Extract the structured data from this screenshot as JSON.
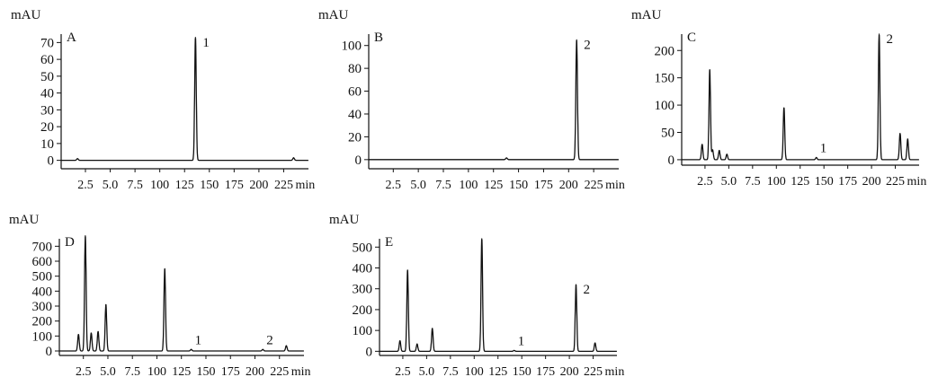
{
  "chart_data": [
    {
      "type": "line",
      "panel_label": "A",
      "ylabel": "mAU",
      "xlabel_unit": "min",
      "ylim": [
        -5,
        75
      ],
      "xlim": [
        0.5,
        250
      ],
      "y_ticks": [
        "0",
        "10",
        "20",
        "30",
        "40",
        "50",
        "60",
        "70"
      ],
      "x_ticks": [
        "2.5",
        "5.0",
        "7.5",
        "100",
        "125",
        "150",
        "175",
        "200",
        "225"
      ],
      "x_tick_values": [
        25,
        50,
        75,
        100,
        125,
        150,
        175,
        200,
        225
      ],
      "baseline": 0,
      "peaks": [
        {
          "x": 17,
          "y": 1.0,
          "label": ""
        },
        {
          "x": 136,
          "y": 73,
          "label": "1"
        },
        {
          "x": 235,
          "y": 1.5,
          "label": ""
        }
      ],
      "peak_labels": [
        "1"
      ]
    },
    {
      "type": "line",
      "panel_label": "B",
      "ylabel": "mAU",
      "xlabel_unit": "min",
      "ylim": [
        -8,
        110
      ],
      "xlim": [
        0.5,
        250
      ],
      "y_ticks": [
        "0",
        "20",
        "40",
        "60",
        "80",
        "100"
      ],
      "x_ticks": [
        "2.5",
        "5.0",
        "7.5",
        "100",
        "125",
        "150",
        "175",
        "200",
        "225"
      ],
      "x_tick_values": [
        25,
        50,
        75,
        100,
        125,
        150,
        175,
        200,
        225
      ],
      "baseline": 0,
      "peaks": [
        {
          "x": 138,
          "y": 1.5,
          "label": ""
        },
        {
          "x": 208,
          "y": 105,
          "label": "2"
        }
      ],
      "peak_labels": [
        "2"
      ]
    },
    {
      "type": "line",
      "panel_label": "C",
      "ylabel": "mAU",
      "xlabel_unit": "min",
      "ylim": [
        -10,
        230
      ],
      "xlim": [
        0.5,
        250
      ],
      "y_ticks": [
        "0",
        "50",
        "100",
        "150",
        "200"
      ],
      "x_ticks": [
        "2.5",
        "5.0",
        "7.5",
        "100",
        "125",
        "150",
        "175",
        "200",
        "225"
      ],
      "x_tick_values": [
        25,
        50,
        75,
        100,
        125,
        150,
        175,
        200,
        225
      ],
      "baseline": 0,
      "peaks": [
        {
          "x": 22,
          "y": 28,
          "label": ""
        },
        {
          "x": 30,
          "y": 165,
          "label": ""
        },
        {
          "x": 33,
          "y": 18,
          "label": ""
        },
        {
          "x": 40,
          "y": 17,
          "label": ""
        },
        {
          "x": 48,
          "y": 10,
          "label": ""
        },
        {
          "x": 108,
          "y": 95,
          "label": ""
        },
        {
          "x": 142,
          "y": 4,
          "label": "1"
        },
        {
          "x": 208,
          "y": 230,
          "label": "2"
        },
        {
          "x": 230,
          "y": 48,
          "label": ""
        },
        {
          "x": 238,
          "y": 38,
          "label": ""
        }
      ],
      "peak_labels": [
        "1",
        "2"
      ]
    },
    {
      "type": "line",
      "panel_label": "D",
      "ylabel": "mAU",
      "xlabel_unit": "min",
      "ylim": [
        -30,
        750
      ],
      "xlim": [
        0.5,
        250
      ],
      "y_ticks": [
        "0",
        "100",
        "200",
        "300",
        "400",
        "500",
        "600",
        "700"
      ],
      "x_ticks": [
        "2.5",
        "5.0",
        "7.5",
        "100",
        "125",
        "150",
        "175",
        "200",
        "225"
      ],
      "x_tick_values": [
        25,
        50,
        75,
        100,
        125,
        150,
        175,
        200,
        225
      ],
      "baseline": 0,
      "peaks": [
        {
          "x": 20,
          "y": 110,
          "label": ""
        },
        {
          "x": 27,
          "y": 770,
          "label": ""
        },
        {
          "x": 33,
          "y": 120,
          "label": ""
        },
        {
          "x": 40,
          "y": 130,
          "label": ""
        },
        {
          "x": 48,
          "y": 310,
          "label": ""
        },
        {
          "x": 108,
          "y": 550,
          "label": ""
        },
        {
          "x": 135,
          "y": 10,
          "label": "1"
        },
        {
          "x": 208,
          "y": 10,
          "label": "2"
        },
        {
          "x": 232,
          "y": 35,
          "label": ""
        }
      ],
      "peak_labels": [
        "1",
        "2"
      ]
    },
    {
      "type": "line",
      "panel_label": "E",
      "ylabel": "mAU",
      "xlabel_unit": "min",
      "ylim": [
        -20,
        540
      ],
      "xlim": [
        0.5,
        250
      ],
      "y_ticks": [
        "0",
        "100",
        "200",
        "300",
        "400",
        "500"
      ],
      "x_ticks": [
        "2.5",
        "5.0",
        "7.5",
        "100",
        "125",
        "150",
        "175",
        "200",
        "225"
      ],
      "x_tick_values": [
        25,
        50,
        75,
        100,
        125,
        150,
        175,
        200,
        225
      ],
      "baseline": 0,
      "peaks": [
        {
          "x": 22,
          "y": 50,
          "label": ""
        },
        {
          "x": 30,
          "y": 390,
          "label": ""
        },
        {
          "x": 40,
          "y": 35,
          "label": ""
        },
        {
          "x": 56,
          "y": 110,
          "label": ""
        },
        {
          "x": 108,
          "y": 540,
          "label": ""
        },
        {
          "x": 142,
          "y": 4,
          "label": "1"
        },
        {
          "x": 207,
          "y": 320,
          "label": "2"
        },
        {
          "x": 227,
          "y": 40,
          "label": ""
        }
      ],
      "peak_labels": [
        "1",
        "2"
      ]
    }
  ]
}
